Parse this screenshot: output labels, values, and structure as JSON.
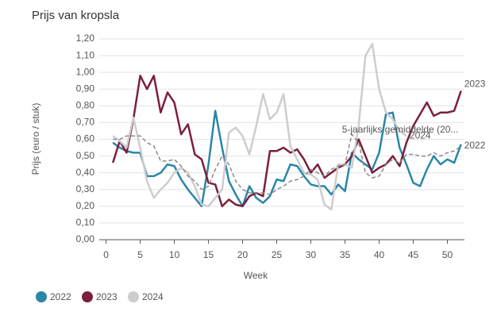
{
  "chart_data": {
    "type": "line",
    "title": "Prijs van kropsla",
    "xlabel": "Week",
    "ylabel": "Prijs (euro / stuk)",
    "x": [
      1,
      2,
      3,
      4,
      5,
      6,
      7,
      8,
      9,
      10,
      11,
      12,
      13,
      14,
      15,
      16,
      17,
      18,
      19,
      20,
      21,
      22,
      23,
      24,
      25,
      26,
      27,
      28,
      29,
      30,
      31,
      32,
      33,
      34,
      35,
      36,
      37,
      38,
      39,
      40,
      41,
      42,
      43,
      44,
      45,
      46,
      47,
      48,
      49,
      50,
      51,
      52
    ],
    "series": [
      {
        "name": "2022",
        "color": "#2b86a8",
        "legend": true,
        "values": [
          0.58,
          0.55,
          0.53,
          0.52,
          0.52,
          0.38,
          0.38,
          0.4,
          0.45,
          0.44,
          0.36,
          0.3,
          0.25,
          0.2,
          0.45,
          0.77,
          0.55,
          0.35,
          0.27,
          0.2,
          0.32,
          0.25,
          0.22,
          0.26,
          0.36,
          0.35,
          0.45,
          0.44,
          0.38,
          0.33,
          0.32,
          0.32,
          0.27,
          0.33,
          0.29,
          0.52,
          0.48,
          0.45,
          0.42,
          0.52,
          0.75,
          0.76,
          0.55,
          0.45,
          0.34,
          0.32,
          0.42,
          0.5,
          0.45,
          0.48,
          0.46,
          0.57
        ]
      },
      {
        "name": "2023",
        "color": "#7a1f3d",
        "legend": true,
        "values": [
          0.46,
          0.59,
          0.52,
          0.72,
          0.98,
          0.9,
          0.98,
          0.76,
          0.88,
          0.82,
          0.63,
          0.69,
          0.51,
          0.48,
          0.34,
          0.33,
          0.2,
          0.24,
          0.21,
          0.2,
          0.26,
          0.28,
          0.26,
          0.53,
          0.53,
          0.55,
          0.52,
          0.54,
          0.48,
          0.4,
          0.45,
          0.37,
          0.4,
          0.43,
          0.45,
          0.5,
          0.6,
          0.5,
          0.4,
          0.43,
          0.45,
          0.5,
          0.44,
          0.58,
          0.68,
          0.75,
          0.82,
          0.74,
          0.76,
          0.76,
          0.77,
          0.89
        ]
      },
      {
        "name": "2024",
        "color": "#cdcdcd",
        "legend": true,
        "values": [
          0.62,
          0.59,
          0.55,
          0.73,
          0.55,
          0.35,
          0.25,
          0.3,
          0.34,
          0.4,
          0.43,
          0.4,
          0.32,
          0.21,
          0.2,
          0.25,
          0.3,
          0.64,
          0.67,
          0.62,
          0.51,
          0.68,
          0.87,
          0.72,
          0.76,
          0.87,
          0.56,
          0.48,
          0.4,
          0.39,
          0.36,
          0.21,
          0.18,
          0.45,
          0.45,
          0.43,
          0.68,
          1.1,
          1.17,
          0.9,
          0.76,
          0.72,
          0.65,
          0.62,
          null,
          null,
          null,
          null,
          null,
          null,
          null,
          null
        ]
      },
      {
        "name": "5-jaarlijks gemiddelde (20...",
        "color": "#8a8a8a",
        "dashed": true,
        "legend": false,
        "values": [
          0.6,
          0.6,
          0.62,
          0.62,
          0.62,
          0.58,
          0.56,
          0.47,
          0.47,
          0.48,
          0.44,
          0.38,
          0.35,
          0.3,
          0.32,
          0.42,
          0.5,
          0.45,
          0.35,
          0.3,
          0.28,
          0.28,
          0.28,
          0.27,
          0.3,
          0.32,
          0.35,
          0.36,
          0.38,
          0.42,
          0.4,
          0.38,
          0.42,
          0.44,
          0.45,
          0.63,
          0.58,
          0.4,
          0.37,
          0.38,
          0.45,
          0.48,
          0.46,
          0.51,
          0.51,
          0.5,
          0.5,
          0.52,
          0.5,
          0.52,
          0.53,
          0.56
        ]
      }
    ],
    "xlim": [
      -1,
      52.5
    ],
    "xticks": [
      0,
      5,
      10,
      15,
      20,
      25,
      30,
      35,
      40,
      45,
      50
    ],
    "ylim": [
      0,
      1.2
    ],
    "yticks": [
      {
        "value": 0,
        "label": "0,00"
      },
      {
        "value": 0.1,
        "label": "0,10"
      },
      {
        "value": 0.2,
        "label": "0,20"
      },
      {
        "value": 0.3,
        "label": "0,30"
      },
      {
        "value": 0.4,
        "label": "0,40"
      },
      {
        "value": 0.5,
        "label": "0,50"
      },
      {
        "value": 0.6,
        "label": "0,60"
      },
      {
        "value": 0.7,
        "label": "0,70"
      },
      {
        "value": 0.8,
        "label": "0,80"
      },
      {
        "value": 0.9,
        "label": "0,90"
      },
      {
        "value": 1.0,
        "label": "1,00"
      },
      {
        "value": 1.1,
        "label": "1,10"
      },
      {
        "value": 1.2,
        "label": "1,20"
      }
    ],
    "grid": true
  }
}
